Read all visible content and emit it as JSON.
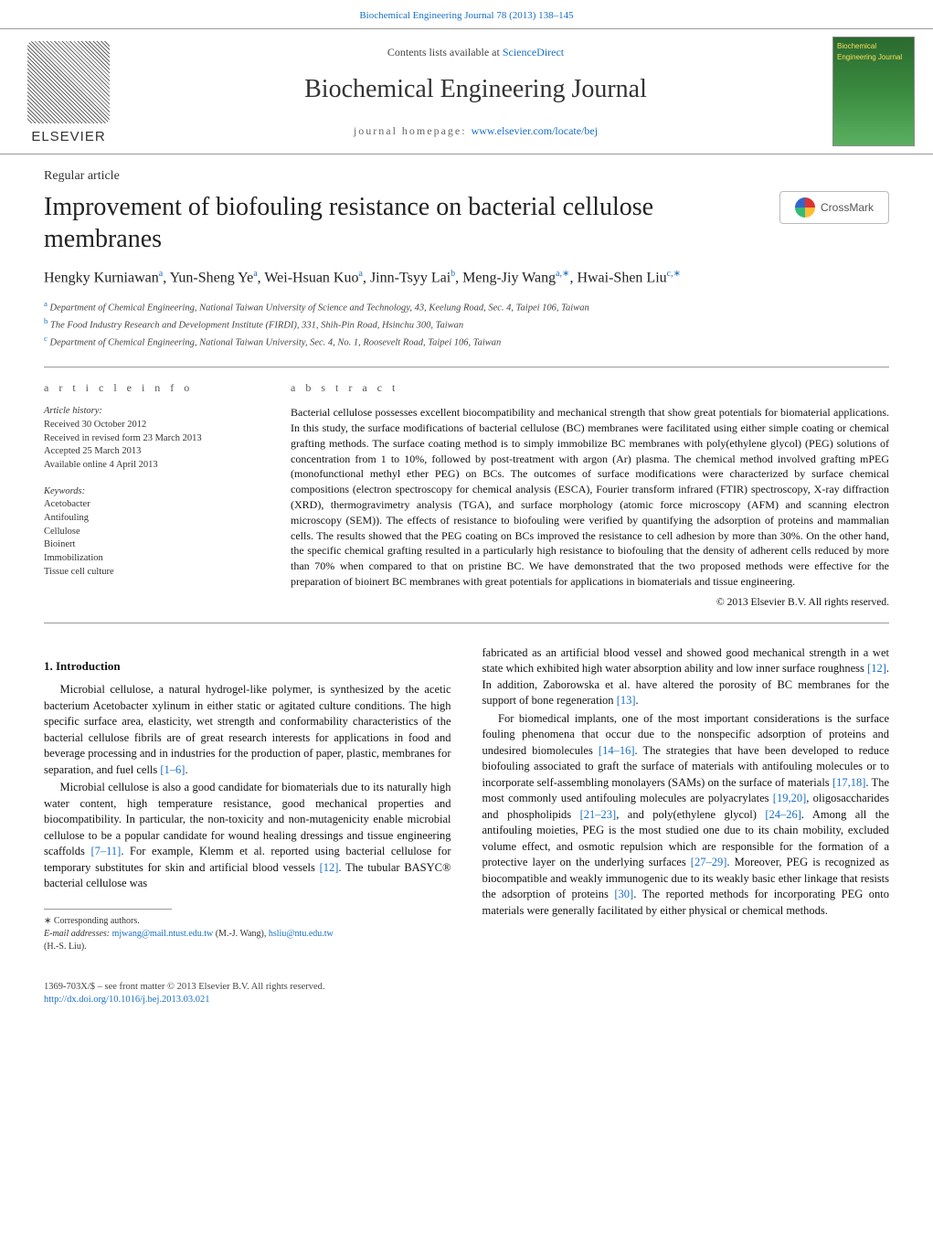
{
  "top_link": {
    "prefix": "Biochemical Engineering Journal 78 (2013) 138–145"
  },
  "header": {
    "contents_prefix": "Contents lists available at ",
    "contents_link": "ScienceDirect",
    "journal": "Biochemical Engineering Journal",
    "homepage_prefix": "journal homepage: ",
    "homepage_url": "www.elsevier.com/locate/bej",
    "publisher": "ELSEVIER",
    "cover_text": "Biochemical Engineering Journal"
  },
  "meta": {
    "type": "Regular article",
    "title": "Improvement of biofouling resistance on bacterial cellulose membranes",
    "crossmark": "CrossMark",
    "authors_html": "Hengky Kurniawan|a|, Yun-Sheng Ye|a|, Wei-Hsuan Kuo|a|, Jinn-Tsyy Lai|b|, Meng-Jiy Wang|a,∗|, Hwai-Shen Liu|c,∗|",
    "affiliations": [
      {
        "sup": "a",
        "text": "Department of Chemical Engineering, National Taiwan University of Science and Technology, 43, Keelung Road, Sec. 4, Taipei 106, Taiwan"
      },
      {
        "sup": "b",
        "text": "The Food Industry Research and Development Institute (FIRDI), 331, Shih-Pin Road, Hsinchu 300, Taiwan"
      },
      {
        "sup": "c",
        "text": "Department of Chemical Engineering, National Taiwan University, Sec. 4, No. 1, Roosevelt Road, Taipei 106, Taiwan"
      }
    ]
  },
  "info": {
    "heading": "a r t i c l e   i n f o",
    "history_label": "Article history:",
    "history": [
      "Received 30 October 2012",
      "Received in revised form 23 March 2013",
      "Accepted 25 March 2013",
      "Available online 4 April 2013"
    ],
    "keywords_label": "Keywords:",
    "keywords": [
      "Acetobacter",
      "Antifouling",
      "Cellulose",
      "Bioinert",
      "Immobilization",
      "Tissue cell culture"
    ]
  },
  "abstract": {
    "heading": "a b s t r a c t",
    "body": "Bacterial cellulose possesses excellent biocompatibility and mechanical strength that show great potentials for biomaterial applications. In this study, the surface modifications of bacterial cellulose (BC) membranes were facilitated using either simple coating or chemical grafting methods. The surface coating method is to simply immobilize BC membranes with poly(ethylene glycol) (PEG) solutions of concentration from 1 to 10%, followed by post-treatment with argon (Ar) plasma. The chemical method involved grafting mPEG (monofunctional methyl ether PEG) on BCs. The outcomes of surface modifications were characterized by surface chemical compositions (electron spectroscopy for chemical analysis (ESCA), Fourier transform infrared (FTIR) spectroscopy, X-ray diffraction (XRD), thermogravimetry analysis (TGA), and surface morphology (atomic force microscopy (AFM) and scanning electron microscopy (SEM)). The effects of resistance to biofouling were verified by quantifying the adsorption of proteins and mammalian cells. The results showed that the PEG coating on BCs improved the resistance to cell adhesion by more than 30%. On the other hand, the specific chemical grafting resulted in a particularly high resistance to biofouling that the density of adherent cells reduced by more than 70% when compared to that on pristine BC. We have demonstrated that the two proposed methods were effective for the preparation of bioinert BC membranes with great potentials for applications in biomaterials and tissue engineering.",
    "copyright": "© 2013 Elsevier B.V. All rights reserved."
  },
  "body": {
    "section1_title": "1.  Introduction",
    "col1": [
      "Microbial cellulose, a natural hydrogel-like polymer, is synthesized by the acetic bacterium Acetobacter xylinum in either static or agitated culture conditions. The high specific surface area, elasticity, wet strength and conformability characteristics of the bacterial cellulose fibrils are of great research interests for applications in food and beverage processing and in industries for the production of paper, plastic, membranes for separation, and fuel cells ",
      "Microbial cellulose is also a good candidate for biomaterials due to its naturally high water content, high temperature resistance, good mechanical properties and biocompatibility. In particular, the non-toxicity and non-mutagenicity enable microbial cellulose to be a popular candidate for wound healing dressings and tissue engineering scaffolds ",
      ". For example, Klemm et al. reported using bacterial cellulose for temporary substitutes for skin and artificial blood vessels ",
      ". The tubular BASYC® bacterial cellulose was"
    ],
    "col1_refs": [
      "[1–6]",
      "[7–11]",
      "[12]"
    ],
    "col2": [
      "fabricated as an artificial blood vessel and showed good mechanical strength in a wet state which exhibited high water absorption ability and low inner surface roughness ",
      ". In addition, Zaborowska et al. have altered the porosity of BC membranes for the support of bone regeneration ",
      "For biomedical implants, one of the most important considerations is the surface fouling phenomena that occur due to the nonspecific adsorption of proteins and undesired biomolecules ",
      ". The strategies that have been developed to reduce biofouling associated to graft the surface of materials with antifouling molecules or to incorporate self-assembling monolayers (SAMs) on the surface of materials ",
      ". The most commonly used antifouling molecules are polyacrylates ",
      ", oligosaccharides and phospholipids ",
      ", and poly(ethylene glycol) ",
      ". Among all the antifouling moieties, PEG is the most studied one due to its chain mobility, excluded volume effect, and osmotic repulsion which are responsible for the formation of a protective layer on the underlying surfaces ",
      ". Moreover, PEG is recognized as biocompatible and weakly immunogenic due to its weakly basic ether linkage that resists the adsorption of proteins ",
      ". The reported methods for incorporating PEG onto materials were generally facilitated by either physical or chemical methods."
    ],
    "col2_refs": [
      "[12]",
      "[13]",
      "[14–16]",
      "[17,18]",
      "[19,20]",
      "[21–23]",
      "[24–26]",
      "[27–29]",
      "[30]"
    ]
  },
  "footnotes": {
    "corr": "∗ Corresponding authors.",
    "emails_label": "E-mail addresses: ",
    "email1": "mjwang@mail.ntust.edu.tw",
    "name1": " (M.-J. Wang), ",
    "email2": "hsliu@ntu.edu.tw",
    "name2": " (H.-S. Liu)."
  },
  "bottom": {
    "line1": "1369-703X/$ – see front matter © 2013 Elsevier B.V. All rights reserved.",
    "doi": "http://dx.doi.org/10.1016/j.bej.2013.03.021"
  },
  "colors": {
    "link": "#1a6fc4",
    "rule": "#999999",
    "text": "#111111",
    "cover_bg_top": "#2a6a2f",
    "cover_bg_bot": "#5ab05f",
    "cover_text": "#ffde5a"
  },
  "typography": {
    "journal_name_pt": 28,
    "title_pt": 28,
    "authors_pt": 16,
    "body_pt": 12.5,
    "affil_pt": 10.5,
    "footnote_pt": 10
  }
}
